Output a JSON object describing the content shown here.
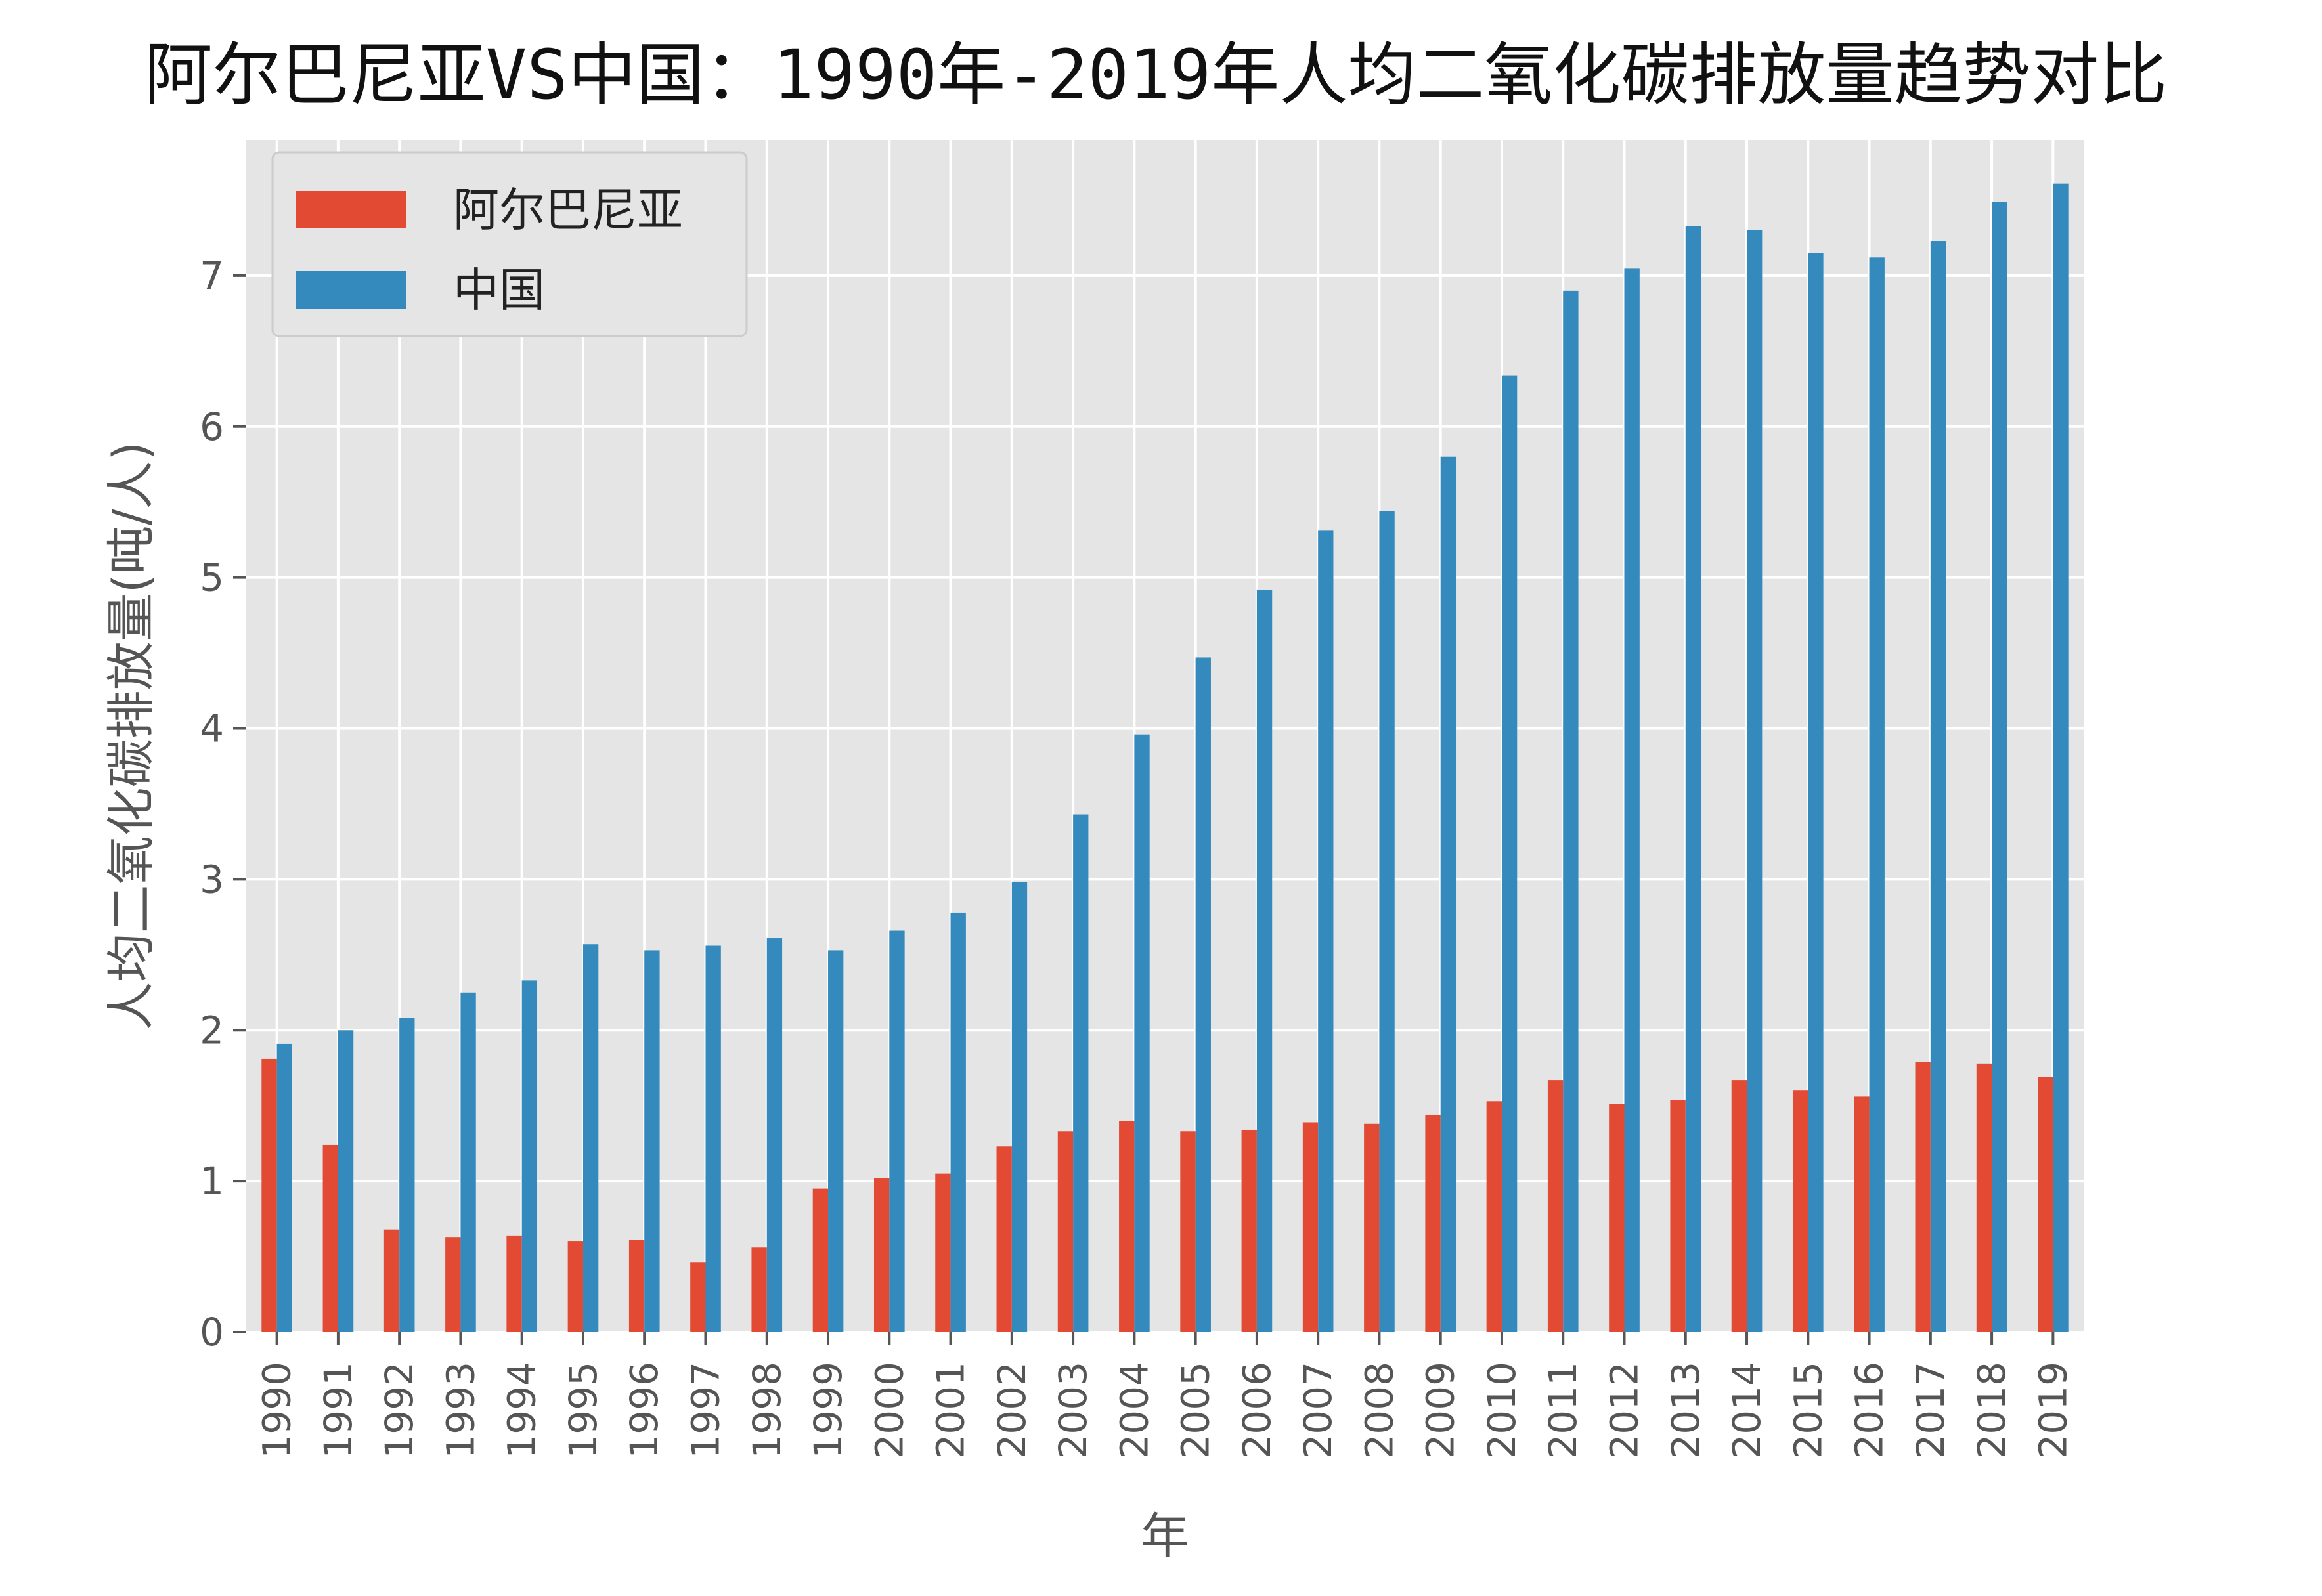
{
  "chart_data": {
    "type": "bar",
    "title": "阿尔巴尼亚VS中国：1990年-2019年人均二氧化碳排放量趋势对比",
    "xlabel": "年",
    "ylabel": "人均二氧化碳排放量(吨/人)",
    "ylim": [
      0,
      7.9
    ],
    "yticks": [
      "0",
      "1",
      "2",
      "3",
      "4",
      "5",
      "6",
      "7"
    ],
    "grid": true,
    "legend_position": "top-left",
    "categories": [
      "1990",
      "1991",
      "1992",
      "1993",
      "1994",
      "1995",
      "1996",
      "1997",
      "1998",
      "1999",
      "2000",
      "2001",
      "2002",
      "2003",
      "2004",
      "2005",
      "2006",
      "2007",
      "2008",
      "2009",
      "2010",
      "2011",
      "2012",
      "2013",
      "2014",
      "2015",
      "2016",
      "2017",
      "2018",
      "2019"
    ],
    "series": [
      {
        "name": "阿尔巴尼亚",
        "color": "#E24A33",
        "values": [
          1.81,
          1.24,
          0.68,
          0.63,
          0.64,
          0.6,
          0.61,
          0.46,
          0.56,
          0.95,
          1.02,
          1.05,
          1.23,
          1.33,
          1.4,
          1.33,
          1.34,
          1.39,
          1.38,
          1.44,
          1.53,
          1.67,
          1.51,
          1.54,
          1.67,
          1.6,
          1.56,
          1.79,
          1.78,
          1.69
        ]
      },
      {
        "name": "中国",
        "color": "#348ABD",
        "values": [
          1.91,
          2.0,
          2.08,
          2.25,
          2.33,
          2.57,
          2.53,
          2.56,
          2.61,
          2.53,
          2.66,
          2.78,
          2.98,
          3.43,
          3.96,
          4.47,
          4.92,
          5.31,
          5.44,
          5.8,
          6.34,
          6.9,
          7.05,
          7.33,
          7.3,
          7.15,
          7.12,
          7.23,
          7.49,
          7.61
        ]
      }
    ]
  },
  "colors": {
    "plot_background": "#E5E5E5",
    "grid": "#FFFFFF",
    "legend_background": "#E5E5E5"
  }
}
